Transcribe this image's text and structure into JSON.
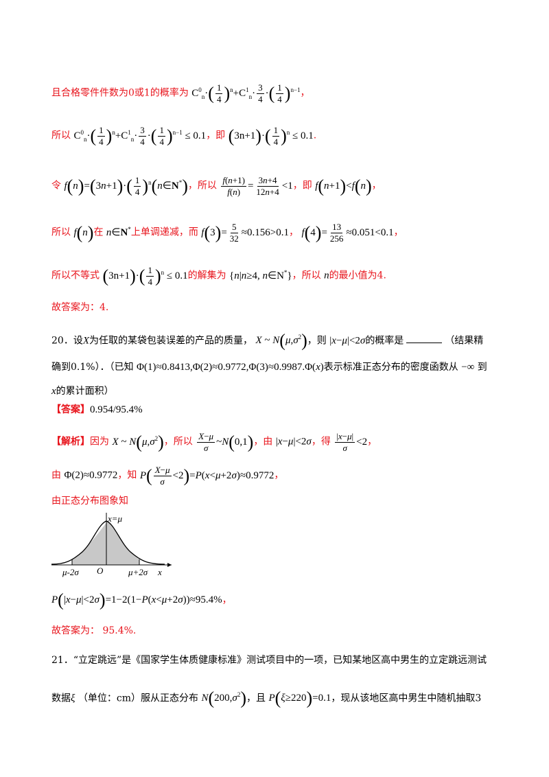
{
  "lines": {
    "l1_text": "且合格零件件数为0或1的概率为",
    "l1_math": "C⁰ₙ·(1/4)ⁿ + C¹ₙ·(3/4)·(1/4)ⁿ⁻¹",
    "l2_a": "所以",
    "l2_b": "，即",
    "l3_a": "令",
    "l3_b": "，所以",
    "l3_c": "，即",
    "l4_a": "所以",
    "l4_b": "在",
    "l4_c": "上单调递减，而",
    "l5_a": "所以不等式",
    "l5_b": "的解集为",
    "l5_c": "，所以",
    "l5_d": "的最小值为4.",
    "answer1": "故答案为：4."
  },
  "q20": {
    "number": "20．设",
    "text1": "为任取的某袋包装误差的产品的质量，",
    "text2": "，则",
    "text3": "的概率是",
    "text4": "（结果精",
    "text5": "确到0.1%）．（已知",
    "text6": "表示标准正态分布的密度函数从",
    "text7": "到",
    "text8": "的累计面积）",
    "answer_tag": "【答案】",
    "answer": "0.954/95.4%",
    "analysis_tag": "【解析】",
    "a1": "因为",
    "a2": "，所以",
    "a3": "，由",
    "a4": "，得",
    "a5": "由",
    "a6": "，知",
    "a7": "由正态分布图象知",
    "final": "故答案为：  95.4%."
  },
  "graph": {
    "label_mean": "x=μ",
    "label_left": "μ-2σ",
    "label_origin": "O",
    "label_right": "μ+2σ",
    "label_x": "x"
  },
  "q21": {
    "line1": "21．“立定跳远”是《国家学生体质健康标准》测试项目中的一项，已知某地区高中男生的立定跳远测试",
    "line2_a": "数据",
    "line2_b": "（单位：cm）服从正态分布",
    "line2_c": "，且",
    "line2_d": "，现从该地区高中男生中随机抽取3"
  }
}
